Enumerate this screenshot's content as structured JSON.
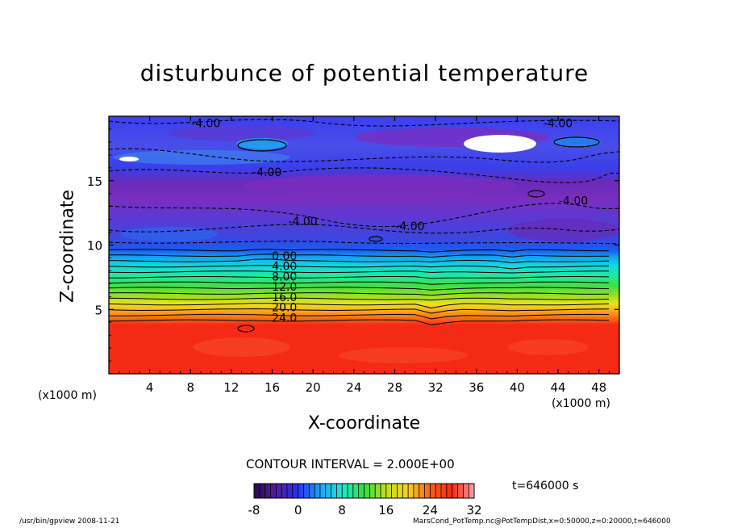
{
  "chart_data": {
    "type": "heatmap",
    "title": "disturbunce of potential temperature",
    "xlabel": "X-coordinate",
    "ylabel": "Z-coordinate",
    "x_unit_label": "(x1000 m)",
    "xlim": [
      0,
      50
    ],
    "ylim": [
      0,
      20
    ],
    "x_ticks": [
      4,
      8,
      12,
      16,
      20,
      24,
      28,
      32,
      36,
      40,
      44,
      48
    ],
    "y_ticks": [
      5,
      10,
      15
    ],
    "contour_interval_text": "CONTOUR INTERVAL = 2.000E+00",
    "time_text": "t=646000 s",
    "colorbar": {
      "min": -8,
      "max": 32,
      "ticks": [
        -8,
        0,
        8,
        16,
        24,
        32
      ]
    },
    "contour_labels": [
      {
        "x": 9.5,
        "z": 19.4,
        "text": "-4.00"
      },
      {
        "x": 15.5,
        "z": 15.6,
        "text": "-4.00"
      },
      {
        "x": 19.0,
        "z": 11.8,
        "text": "-4.00"
      },
      {
        "x": 29.5,
        "z": 11.4,
        "text": "-4.00"
      },
      {
        "x": 44.0,
        "z": 19.4,
        "text": "-4.00"
      },
      {
        "x": 45.5,
        "z": 13.4,
        "text": "-4.00"
      },
      {
        "x": 17.2,
        "z": 9.1,
        "text": "0.00"
      },
      {
        "x": 17.2,
        "z": 8.3,
        "text": "4.00"
      },
      {
        "x": 17.2,
        "z": 7.5,
        "text": "8.00"
      },
      {
        "x": 17.2,
        "z": 6.7,
        "text": "12.0"
      },
      {
        "x": 17.2,
        "z": 5.9,
        "text": "16.0"
      },
      {
        "x": 17.2,
        "z": 5.1,
        "text": "20.0"
      },
      {
        "x": 17.2,
        "z": 4.3,
        "text": "24.0"
      }
    ],
    "grid": false
  },
  "colors": {
    "deep": "#6a2ab8",
    "blue": "#2a3cf2",
    "hot": "#f42a14"
  },
  "footer": {
    "left": "/usr/bin/gpview   2008-11-21",
    "right": "MarsCond_PotTemp.nc@PotTempDist,x=0:50000,z=0:20000,t=646000"
  }
}
